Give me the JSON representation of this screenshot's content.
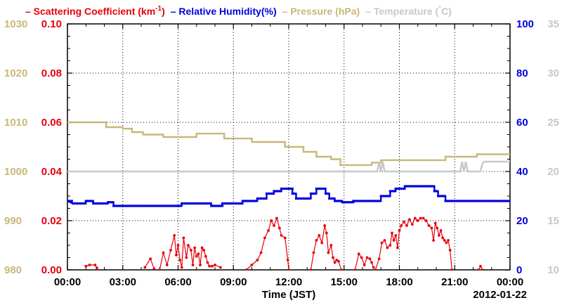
{
  "colors": {
    "scattering": "#e8000b",
    "humidity": "#0000e0",
    "pressure": "#c8b878",
    "temperature": "#c8c8c8",
    "axis": "#000000"
  },
  "legend": [
    {
      "dash": "–",
      "label": "Scattering Coefficient (km",
      "sup": "-1",
      "tail": ")",
      "color_key": "scattering"
    },
    {
      "dash": "–",
      "label": "Relative Humidity(%)",
      "sup": "",
      "tail": "",
      "color_key": "humidity"
    },
    {
      "dash": "–",
      "label": "Pressure (hPa)",
      "sup": "",
      "tail": "",
      "color_key": "pressure"
    },
    {
      "dash": "–",
      "label": "Temperature (",
      "sup": "°",
      "tail": "C)",
      "color_key": "temperature"
    }
  ],
  "xlabel": "Time (JST)",
  "date_label": "2012-01-22",
  "chart_data": {
    "type": "line",
    "x_ticks": [
      "00:00",
      "03:00",
      "06:00",
      "09:00",
      "12:00",
      "15:00",
      "18:00",
      "21:00",
      "00:00"
    ],
    "x_range_hours": [
      0,
      24
    ],
    "grid": true,
    "axes": {
      "pressure": {
        "side": "left-outer",
        "range": [
          980,
          1030
        ],
        "ticks": [
          "980",
          "990",
          "1000",
          "1010",
          "1020",
          "1030"
        ]
      },
      "scattering": {
        "side": "left-inner",
        "range": [
          0,
          0.1
        ],
        "ticks": [
          "0.00",
          "0.02",
          "0.04",
          "0.06",
          "0.08",
          "0.10"
        ]
      },
      "humidity": {
        "side": "right-inner",
        "range": [
          0,
          100
        ],
        "ticks": [
          "0",
          "20",
          "40",
          "60",
          "80",
          "100"
        ]
      },
      "temperature": {
        "side": "right-outer",
        "range": [
          10,
          35
        ],
        "ticks": [
          "10",
          "15",
          "20",
          "25",
          "30",
          "35"
        ]
      }
    },
    "series": [
      {
        "name": "Pressure (hPa)",
        "axis": "pressure",
        "color_key": "pressure",
        "step": true,
        "points": [
          [
            0,
            1010
          ],
          [
            2.1,
            1010
          ],
          [
            2.1,
            1009
          ],
          [
            3.0,
            1009
          ],
          [
            3.0,
            1008.7
          ],
          [
            3.5,
            1008.7
          ],
          [
            3.5,
            1008
          ],
          [
            4.1,
            1008
          ],
          [
            4.1,
            1007.5
          ],
          [
            5.2,
            1007.5
          ],
          [
            5.2,
            1007
          ],
          [
            7.0,
            1007
          ],
          [
            7.0,
            1007.7
          ],
          [
            8.5,
            1007.7
          ],
          [
            8.5,
            1006.7
          ],
          [
            10.0,
            1006.7
          ],
          [
            10.0,
            1006
          ],
          [
            11.8,
            1006
          ],
          [
            11.8,
            1005
          ],
          [
            12.8,
            1005
          ],
          [
            12.8,
            1004
          ],
          [
            13.5,
            1004
          ],
          [
            13.5,
            1003
          ],
          [
            14.3,
            1003
          ],
          [
            14.3,
            1002.5
          ],
          [
            14.8,
            1002.5
          ],
          [
            14.8,
            1001.3
          ],
          [
            16.5,
            1001.3
          ],
          [
            16.5,
            1001.8
          ],
          [
            17.0,
            1001.8
          ],
          [
            17.0,
            1002.3
          ],
          [
            20.5,
            1002.3
          ],
          [
            20.5,
            1003
          ],
          [
            22.2,
            1003
          ],
          [
            22.2,
            1003.5
          ],
          [
            24,
            1003.5
          ]
        ],
        "point_style": "none"
      },
      {
        "name": "Temperature",
        "axis": "temperature",
        "color_key": "temperature",
        "step": false,
        "points": [
          [
            0,
            20
          ],
          [
            16.8,
            20
          ],
          [
            16.9,
            21
          ],
          [
            17.0,
            20
          ],
          [
            17.1,
            21
          ],
          [
            17.2,
            20
          ],
          [
            21.3,
            20
          ],
          [
            21.4,
            21
          ],
          [
            21.5,
            20
          ],
          [
            21.6,
            21
          ],
          [
            21.7,
            20
          ],
          [
            22.4,
            20
          ],
          [
            22.5,
            20.8
          ],
          [
            22.6,
            21
          ],
          [
            24,
            21
          ]
        ],
        "point_style": "none"
      },
      {
        "name": "Relative Humidity(%)",
        "axis": "humidity",
        "color_key": "humidity",
        "step": true,
        "points": [
          [
            0,
            28
          ],
          [
            0.3,
            27
          ],
          [
            1.0,
            27
          ],
          [
            1.0,
            28
          ],
          [
            1.4,
            28
          ],
          [
            1.4,
            27
          ],
          [
            2.2,
            27
          ],
          [
            2.2,
            27.5
          ],
          [
            2.5,
            27.5
          ],
          [
            2.5,
            26
          ],
          [
            6.2,
            26
          ],
          [
            6.2,
            27
          ],
          [
            7.8,
            27
          ],
          [
            7.8,
            26
          ],
          [
            8.4,
            26
          ],
          [
            8.4,
            27
          ],
          [
            9.5,
            27
          ],
          [
            9.5,
            28
          ],
          [
            10.3,
            28
          ],
          [
            10.3,
            29
          ],
          [
            10.8,
            29
          ],
          [
            10.8,
            31
          ],
          [
            11.2,
            31
          ],
          [
            11.2,
            32
          ],
          [
            11.6,
            32
          ],
          [
            11.6,
            33
          ],
          [
            12.2,
            33
          ],
          [
            12.2,
            31
          ],
          [
            12.4,
            31
          ],
          [
            12.4,
            29
          ],
          [
            13.2,
            29
          ],
          [
            13.2,
            31
          ],
          [
            13.5,
            31
          ],
          [
            13.5,
            33
          ],
          [
            14.0,
            33
          ],
          [
            14.0,
            31
          ],
          [
            14.2,
            31
          ],
          [
            14.2,
            29
          ],
          [
            14.5,
            29
          ],
          [
            14.5,
            28
          ],
          [
            14.9,
            28
          ],
          [
            14.9,
            27.5
          ],
          [
            15.5,
            27.5
          ],
          [
            15.5,
            28
          ],
          [
            17.0,
            28
          ],
          [
            17.0,
            30
          ],
          [
            17.5,
            30
          ],
          [
            17.5,
            32
          ],
          [
            17.8,
            32
          ],
          [
            17.8,
            33
          ],
          [
            18.3,
            33
          ],
          [
            18.3,
            34
          ],
          [
            19.9,
            34
          ],
          [
            19.9,
            32
          ],
          [
            20.1,
            32
          ],
          [
            20.1,
            30
          ],
          [
            20.5,
            30
          ],
          [
            20.5,
            28
          ],
          [
            24,
            28
          ]
        ],
        "point_style": "square"
      },
      {
        "name": "Scattering Coefficient",
        "axis": "scattering",
        "color_key": "scattering",
        "step": false,
        "segments": [
          [
            [
              1.0,
              0.0015
            ],
            [
              1.2,
              0.002
            ],
            [
              1.5,
              0.002
            ],
            [
              1.6,
              0.0008
            ]
          ],
          [
            [
              4.2,
              0.001
            ],
            [
              4.5,
              0.0045
            ],
            [
              4.7,
              0.0005
            ]
          ],
          [
            [
              5.0,
              0.0
            ],
            [
              5.2,
              0.007
            ],
            [
              5.4,
              0.002
            ],
            [
              5.6,
              0.008
            ],
            [
              5.8,
              0.014
            ],
            [
              5.9,
              0.006
            ],
            [
              6.0,
              0.01
            ],
            [
              6.1,
              0.004
            ],
            [
              6.2,
              0.001
            ],
            [
              6.3,
              0.013
            ],
            [
              6.45,
              0.005
            ],
            [
              6.55,
              0.01
            ],
            [
              6.7,
              0.008
            ],
            [
              6.8,
              0.002
            ],
            [
              6.9,
              0.009
            ],
            [
              7.0,
              0.0055
            ],
            [
              7.1,
              0.0065
            ],
            [
              7.2,
              0.002
            ],
            [
              7.3,
              0.009
            ],
            [
              7.4,
              0.008
            ],
            [
              7.5,
              0.0055
            ],
            [
              7.6,
              0.003
            ],
            [
              7.7,
              0.0015
            ],
            [
              7.85,
              0.0015
            ],
            [
              8.0,
              0.002
            ],
            [
              8.3,
              0.001
            ]
          ],
          [
            [
              9.7,
              0.0
            ],
            [
              10.0,
              0.002
            ],
            [
              10.3,
              0.004
            ],
            [
              10.5,
              0.007
            ],
            [
              10.7,
              0.013
            ],
            [
              10.9,
              0.016
            ],
            [
              11.05,
              0.02
            ],
            [
              11.2,
              0.018
            ],
            [
              11.35,
              0.021
            ],
            [
              11.5,
              0.017
            ],
            [
              11.6,
              0.014
            ],
            [
              11.8,
              0.013
            ],
            [
              11.95,
              0.004
            ],
            [
              12.0,
              0.0
            ]
          ],
          [
            [
              13.2,
              0.0
            ],
            [
              13.35,
              0.007
            ],
            [
              13.5,
              0.012
            ],
            [
              13.65,
              0.014
            ],
            [
              13.8,
              0.011
            ],
            [
              13.95,
              0.018
            ],
            [
              14.05,
              0.015
            ],
            [
              14.15,
              0.007
            ],
            [
              14.3,
              0.01
            ],
            [
              14.4,
              0.005
            ],
            [
              14.5,
              0.003
            ],
            [
              14.6,
              0.004
            ],
            [
              14.7,
              0.0035
            ],
            [
              14.85,
              0.0
            ]
          ],
          [
            [
              15.6,
              0.0
            ],
            [
              15.8,
              0.0065
            ],
            [
              15.95,
              0.005
            ],
            [
              16.1,
              0.002
            ],
            [
              16.25,
              0.005
            ],
            [
              16.4,
              0.0045
            ],
            [
              16.5,
              0.003
            ],
            [
              16.6,
              0.001
            ]
          ],
          [
            [
              16.7,
              0.0
            ],
            [
              16.9,
              0.0045
            ],
            [
              17.05,
              0.011
            ],
            [
              17.2,
              0.012
            ],
            [
              17.35,
              0.009
            ],
            [
              17.5,
              0.01
            ],
            [
              17.6,
              0.015
            ],
            [
              17.7,
              0.012
            ],
            [
              17.8,
              0.014
            ],
            [
              17.9,
              0.009
            ],
            [
              18.0,
              0.016
            ],
            [
              18.1,
              0.018
            ],
            [
              18.25,
              0.0195
            ],
            [
              18.4,
              0.018
            ],
            [
              18.55,
              0.0205
            ],
            [
              18.7,
              0.0185
            ],
            [
              18.85,
              0.021
            ],
            [
              19.0,
              0.02
            ],
            [
              19.15,
              0.021
            ],
            [
              19.3,
              0.021
            ],
            [
              19.45,
              0.02
            ],
            [
              19.6,
              0.018
            ],
            [
              19.75,
              0.017
            ],
            [
              19.85,
              0.012
            ],
            [
              19.95,
              0.019
            ],
            [
              20.05,
              0.017
            ],
            [
              20.15,
              0.014
            ],
            [
              20.25,
              0.016
            ],
            [
              20.35,
              0.013
            ],
            [
              20.45,
              0.012
            ],
            [
              20.55,
              0.011
            ],
            [
              20.65,
              0.012
            ],
            [
              20.75,
              0.008
            ],
            [
              20.85,
              0.0
            ]
          ],
          [
            [
              22.3,
              0.0
            ],
            [
              22.4,
              0.0015
            ],
            [
              22.5,
              0.0
            ]
          ]
        ],
        "point_style": "dot"
      }
    ]
  }
}
